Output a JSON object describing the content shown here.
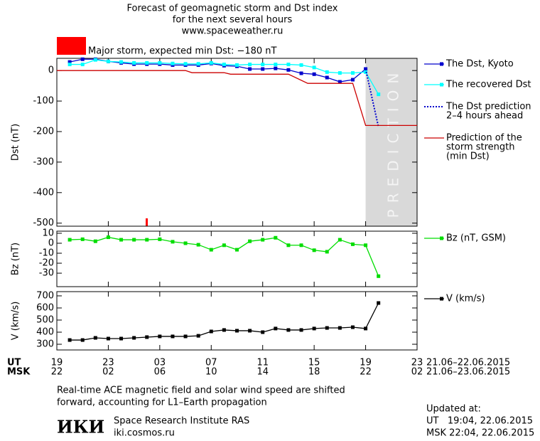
{
  "chart_data": [
    {
      "type": "line",
      "title_lines": [
        "Forecast of geomagnetic storm and Dst index",
        "for the next several hours",
        "www.spaceweather.ru"
      ],
      "alert": {
        "color": "#ff0000",
        "text": "Major storm, expected min Dst: −180 nT"
      },
      "y_label": "Dst (nT)",
      "xlim": [
        0,
        28
      ],
      "ylim": [
        -510,
        40
      ],
      "yticks": [
        0,
        -100,
        -200,
        -300,
        -400,
        -500
      ],
      "prediction_region": {
        "xlim": [
          24,
          28
        ],
        "label": "PREDICTION",
        "color": "#d9d9d9"
      },
      "series": [
        {
          "name": [
            "The Dst, Kyoto"
          ],
          "color": "#0000cc",
          "marker": "square",
          "dash": "none",
          "x": [
            1,
            2,
            3,
            4,
            5,
            6,
            7,
            8,
            9,
            10,
            11,
            12,
            13,
            14,
            15,
            16,
            17,
            18,
            19,
            20,
            21,
            22,
            23,
            24
          ],
          "values": [
            28,
            37,
            37,
            30,
            25,
            21,
            21,
            21,
            18,
            18,
            18,
            23,
            16,
            14,
            5,
            5,
            7,
            2,
            -9,
            -12,
            -23,
            -37,
            -30,
            5
          ]
        },
        {
          "name": [
            "The recovered Dst"
          ],
          "color": "#00ffff",
          "marker": "square",
          "dash": "none",
          "x": [
            1,
            2,
            3,
            4,
            5,
            6,
            7,
            8,
            9,
            10,
            11,
            12,
            13,
            14,
            15,
            16,
            17,
            18,
            19,
            20,
            21,
            22,
            23,
            24,
            25
          ],
          "values": [
            20,
            20,
            35,
            30,
            28,
            25,
            25,
            25,
            23,
            22,
            22,
            25,
            20,
            18,
            20,
            20,
            20,
            20,
            18,
            10,
            -5,
            -8,
            -8,
            -5,
            -78
          ]
        },
        {
          "name": [
            "The Dst prediction",
            "2–4 hours ahead"
          ],
          "color": "#0000cc",
          "marker": "none",
          "dash": "dotted",
          "x": [
            24,
            25
          ],
          "values": [
            5,
            -185
          ]
        },
        {
          "name": [
            "Prediction of the",
            "storm strength",
            "(min Dst)"
          ],
          "color": "#cc0000",
          "marker": "none",
          "dash": "none",
          "x": [
            0,
            10,
            10.5,
            13,
            13.5,
            18,
            19.5,
            23,
            24,
            28
          ],
          "values": [
            0,
            0,
            -7,
            -7,
            -12,
            -12,
            -42,
            -42,
            -180,
            -180
          ]
        }
      ]
    },
    {
      "type": "line",
      "y_label": "Bz (nT)",
      "xlim": [
        0,
        28
      ],
      "ylim": [
        -43.5,
        12.1
      ],
      "yticks": [
        10,
        0,
        -10,
        -20,
        -30
      ],
      "series": [
        {
          "name": [
            "Bz (nT, GSM)"
          ],
          "color": "#00dd00",
          "marker": "square",
          "dash": "none",
          "x": [
            1,
            2,
            3,
            4,
            5,
            6,
            7,
            8,
            9,
            10,
            11,
            12,
            13,
            14,
            15,
            16,
            17,
            18,
            19,
            20,
            21,
            22,
            23,
            24,
            25
          ],
          "values": [
            3.5,
            4,
            2,
            6,
            3.5,
            3.5,
            3.5,
            4,
            1.5,
            0,
            -1.5,
            -6.5,
            -2,
            -6.5,
            2,
            3.5,
            5.5,
            -2,
            -2,
            -7,
            -8.5,
            3.5,
            -1,
            -2,
            -33
          ]
        }
      ]
    },
    {
      "type": "line",
      "y_label": "V (km/s)",
      "xlim": [
        0,
        28
      ],
      "ylim": [
        253,
        735
      ],
      "yticks": [
        300,
        400,
        500,
        600,
        700
      ],
      "xticks": [
        {
          "value": 0,
          "label": "19"
        },
        {
          "value": 4,
          "label": "23"
        },
        {
          "value": 8,
          "label": "03"
        },
        {
          "value": 12,
          "label": "07"
        },
        {
          "value": 16,
          "label": "11"
        },
        {
          "value": 20,
          "label": "15"
        },
        {
          "value": 24,
          "label": "19"
        },
        {
          "value": 28,
          "label": "23"
        }
      ],
      "xticks2": [
        {
          "value": 0,
          "label": "22"
        },
        {
          "value": 4,
          "label": "02"
        },
        {
          "value": 8,
          "label": "06"
        },
        {
          "value": 12,
          "label": "10"
        },
        {
          "value": 16,
          "label": "14"
        },
        {
          "value": 20,
          "label": "18"
        },
        {
          "value": 24,
          "label": "22"
        },
        {
          "value": 28,
          "label": "02"
        }
      ],
      "x_label": "UT",
      "x2_label": "MSK",
      "x_range": "21.06–22.06.2015",
      "x2_range": "21.06–23.06.2015",
      "series": [
        {
          "name": [
            "V (km/s)"
          ],
          "color": "#000000",
          "marker": "square",
          "dash": "none",
          "x": [
            1,
            2,
            3,
            4,
            5,
            6,
            7,
            8,
            9,
            10,
            11,
            12,
            13,
            14,
            15,
            16,
            17,
            18,
            19,
            20,
            21,
            22,
            23,
            24,
            25
          ],
          "values": [
            335,
            335,
            353,
            347,
            347,
            353,
            359,
            365,
            365,
            365,
            370,
            406,
            418,
            412,
            412,
            400,
            430,
            418,
            418,
            430,
            435,
            435,
            441,
            430,
            641
          ]
        }
      ]
    }
  ],
  "footer": {
    "note": [
      "Real-time ACE magnetic field and solar wind speed are shifted",
      "forward, accounting for L1–Earth propagation"
    ],
    "logo": "ИКИ",
    "institute": "Space Research Institute RAS",
    "site": "iki.cosmos.ru",
    "updated": [
      "Updated at:",
      "UT   19:04, 22.06.2015",
      "MSK 22:04, 22.06.2015"
    ]
  }
}
